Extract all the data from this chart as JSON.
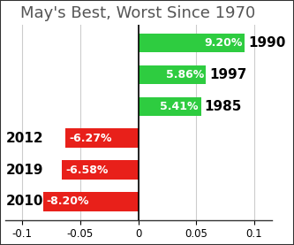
{
  "title": "May's Best, Worst Since 1970",
  "categories": [
    "2010",
    "2019",
    "2012",
    "1985",
    "1997",
    "1990"
  ],
  "values": [
    -0.082,
    -0.0658,
    -0.0627,
    0.0541,
    0.0586,
    0.092
  ],
  "colors": [
    "#e8201a",
    "#e8201a",
    "#e8201a",
    "#2ecc40",
    "#2ecc40",
    "#2ecc40"
  ],
  "bar_labels": [
    "-8.20%",
    "-6.58%",
    "-6.27%",
    "5.41%",
    "5.86%",
    "9.20%"
  ],
  "xlim": [
    -0.115,
    0.115
  ],
  "xticks": [
    -0.1,
    -0.05,
    0.0,
    0.05,
    0.1
  ],
  "xtick_labels": [
    "-0.1",
    "-0.05",
    "0",
    "0.05",
    "0.1"
  ],
  "title_fontsize": 13,
  "label_fontsize": 9,
  "tick_fontsize": 8.5,
  "year_fontsize": 11,
  "background_color": "#ffffff",
  "border_color": "#333333"
}
